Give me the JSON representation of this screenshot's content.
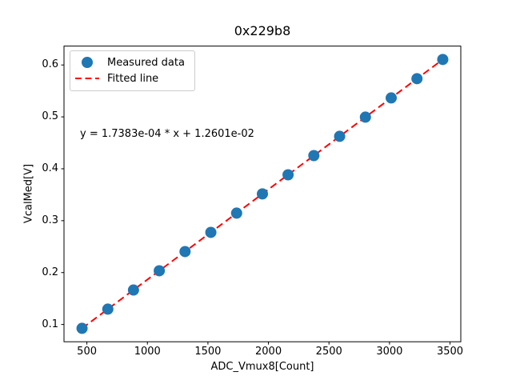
{
  "figure": {
    "title": "0x229b8",
    "xlabel": "ADC_Vmux8[Count]",
    "ylabel": "VcalMed[V]",
    "annotation": "y = 1.7383e-04 * x + 1.2601e-02"
  },
  "legend": {
    "items": [
      {
        "label": "Measured data",
        "marker": "filled-circle"
      },
      {
        "label": "Fitted line",
        "marker": "dashed-line"
      }
    ]
  },
  "chart_data": {
    "type": "scatter",
    "title": "0x229b8",
    "xlabel": "ADC_Vmux8[Count]",
    "ylabel": "VcalMed[V]",
    "annotation": "y = 1.7383e-04 * x + 1.2601e-02",
    "series": [
      {
        "name": "Measured data",
        "type": "scatter",
        "x": [
          460,
          673,
          885,
          1098,
          1311,
          1524,
          1737,
          1950,
          2162,
          2375,
          2588,
          2801,
          3014,
          3227,
          3440
        ],
        "y": [
          0.0926,
          0.1296,
          0.1664,
          0.2035,
          0.2405,
          0.2775,
          0.3145,
          0.3516,
          0.3884,
          0.4254,
          0.4625,
          0.4995,
          0.5365,
          0.5736,
          0.6106
        ],
        "color": "#1f77b4",
        "marker_radius": 7
      },
      {
        "name": "Fitted line",
        "type": "fit-line",
        "slope": 0.00017383,
        "intercept": 0.012601,
        "x_range": [
          460,
          3440
        ],
        "color": "#ff0000",
        "style": "dashed"
      }
    ],
    "xticks": {
      "values": [
        500,
        1000,
        1500,
        2000,
        2500,
        3000,
        3500
      ],
      "labels": [
        "500",
        "1000",
        "1500",
        "2000",
        "2500",
        "3000",
        "3500"
      ]
    },
    "yticks": {
      "values": [
        0.1,
        0.2,
        0.3,
        0.4,
        0.5,
        0.6
      ],
      "labels": [
        "0.1",
        "0.2",
        "0.3",
        "0.4",
        "0.5",
        "0.6"
      ]
    },
    "xlim": [
      311,
      3589
    ],
    "ylim": [
      0.0667,
      0.6364
    ],
    "grid": false,
    "legend_position": "upper-left",
    "background": "#ffffff",
    "spine_color": "#000000"
  }
}
